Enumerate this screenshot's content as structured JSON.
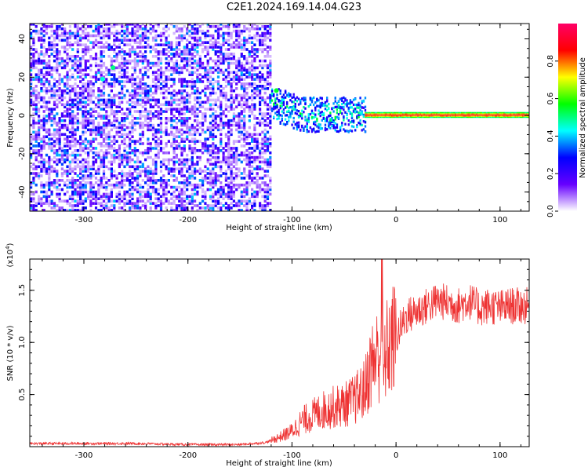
{
  "title": "C2E1.2024.169.14.04.G23",
  "chart_data": [
    {
      "type": "heatmap",
      "title": "C2E1.2024.169.14.04.G23",
      "xlabel": "Height of straight line (km)",
      "ylabel": "Frequency (Hz)",
      "xlim": [
        -352,
        128
      ],
      "ylim": [
        -50,
        48
      ],
      "x_ticks": [
        -300,
        -200,
        -100,
        0,
        100
      ],
      "y_ticks": [
        -40,
        -20,
        0,
        20,
        40
      ],
      "colorbar": {
        "label": "Normalized spectral amplitude",
        "range": [
          0,
          1
        ],
        "ticks": [
          0.0,
          0.2,
          0.4,
          0.6,
          0.8
        ],
        "colormap": [
          "#ffffff",
          "#6600ff",
          "#0000ff",
          "#00ffff",
          "#00ff00",
          "#ffff00",
          "#ff0000",
          "#ff0066"
        ]
      },
      "regions": [
        {
          "x_range": [
            -352,
            -120
          ],
          "description": "broadband noise, amplitude 0.05-0.35 across all frequencies"
        },
        {
          "x_range": [
            -120,
            -30
          ],
          "center_frequency_hz": 0,
          "spread_hz": 10,
          "amplitude": [
            0.2,
            0.6
          ]
        },
        {
          "x_range": [
            -30,
            128
          ],
          "center_frequency_hz": 0,
          "spread_hz": 2,
          "amplitude": [
            0.6,
            1.0
          ]
        }
      ],
      "highlights": [
        {
          "x": -282,
          "y": 19,
          "amplitude": 0.45
        },
        {
          "x": -272,
          "y": 25,
          "amplitude": 0.5
        },
        {
          "x": -115,
          "y": 13,
          "amplitude": 0.55
        }
      ]
    },
    {
      "type": "line",
      "xlabel": "Height of straight line (km)",
      "ylabel": "SNR (10 * v/v)",
      "y_multiplier": "(x10",
      "y_multiplier_exp": "4",
      "y_multiplier_close": ")",
      "xlim": [
        -352,
        128
      ],
      "ylim": [
        0,
        1.8
      ],
      "x_ticks": [
        -300,
        -200,
        -100,
        0,
        100
      ],
      "y_ticks": [
        0.5,
        1.0,
        1.5
      ],
      "series_color": "#ee3333",
      "x": [
        -352,
        -300,
        -250,
        -200,
        -150,
        -125,
        -110,
        -100,
        -90,
        -80,
        -70,
        -60,
        -50,
        -40,
        -30,
        -25,
        -20,
        -15,
        -14,
        -12,
        -10,
        -5,
        0,
        5,
        10,
        20,
        30,
        40,
        50,
        60,
        70,
        80,
        90,
        100,
        110,
        120,
        128
      ],
      "y": [
        0.03,
        0.03,
        0.03,
        0.02,
        0.02,
        0.04,
        0.1,
        0.15,
        0.25,
        0.3,
        0.35,
        0.38,
        0.4,
        0.45,
        0.55,
        0.75,
        0.85,
        0.9,
        1.75,
        0.6,
        0.9,
        1.0,
        1.05,
        1.15,
        1.25,
        1.3,
        1.35,
        1.4,
        1.38,
        1.35,
        1.4,
        1.33,
        1.35,
        1.33,
        1.35,
        1.35,
        1.35
      ]
    }
  ]
}
